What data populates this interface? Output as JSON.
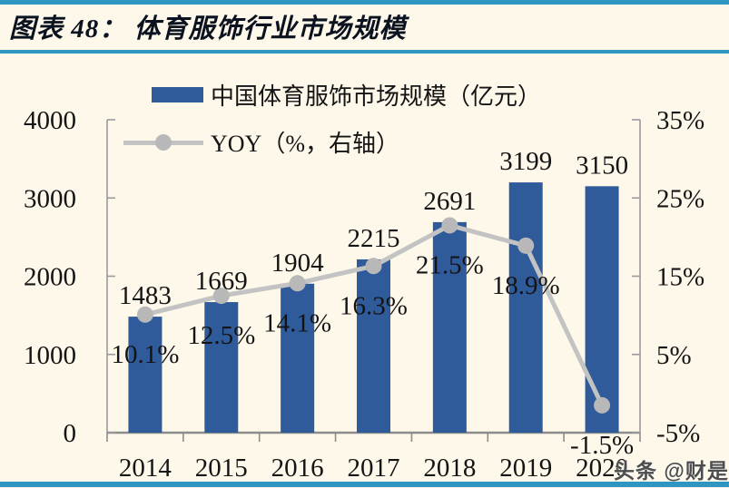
{
  "header": {
    "title": "图表 48： 体育服饰行业市场规模"
  },
  "watermark": {
    "text": "头条 @财是"
  },
  "chart_data": {
    "type": "bar",
    "title": "体育服饰行业市场规模",
    "categories": [
      "2014",
      "2015",
      "2016",
      "2017",
      "2018",
      "2019",
      "2020"
    ],
    "series": [
      {
        "name": "中国体育服饰市场规模（亿元）",
        "type": "bar",
        "axis": "left",
        "values": [
          1483,
          1669,
          1904,
          2215,
          2691,
          3199,
          3150
        ],
        "labels": [
          "1483",
          "1669",
          "1904",
          "2215",
          "2691",
          "3199",
          "3150"
        ],
        "color": "#2F5B9B"
      },
      {
        "name": "YOY（%，右轴）",
        "type": "line",
        "axis": "right",
        "values": [
          10.1,
          12.5,
          14.1,
          16.3,
          21.5,
          18.9,
          -1.5
        ],
        "labels": [
          "10.1%",
          "12.5%",
          "14.1%",
          "16.3%",
          "21.5%",
          "18.9%",
          "-1.5%"
        ],
        "color": "#C3C3C3",
        "marker_color": "#B8B8B8"
      }
    ],
    "left_axis": {
      "min": 0,
      "max": 4000,
      "tick_values": [
        0,
        1000,
        2000,
        3000,
        4000
      ],
      "tick_labels": [
        "0",
        "1000",
        "2000",
        "3000",
        "4000"
      ]
    },
    "right_axis": {
      "min": -5,
      "max": 35,
      "tick_values": [
        -5,
        5,
        15,
        25,
        35
      ],
      "tick_labels": [
        "-5%",
        "5%",
        "15%",
        "25%",
        "35%"
      ]
    },
    "legend_position": "top-left",
    "grid": false,
    "colors": {
      "background": "#FDF8E9",
      "accent_rule": "#2E96C0",
      "axis_line": "#9A9A9A",
      "bottom_axis_line": "#8C8C8C",
      "text": "#141414"
    }
  }
}
